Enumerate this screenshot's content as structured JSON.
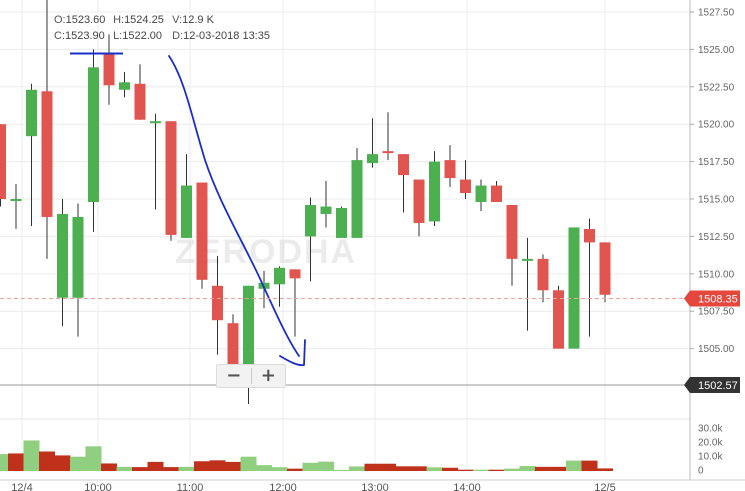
{
  "ohlc_info": {
    "open_label": "O:",
    "open": "1523.60",
    "high_label": "H:",
    "high": "1524.25",
    "volume_label": "V:",
    "volume": "12.9 K",
    "close_label": "C:",
    "close": "1523.90",
    "low_label": "L:",
    "low": "1522.00",
    "date_label": "D:",
    "date": "12-03-2018 13:35"
  },
  "watermark": "ZERODHA",
  "price_tags": {
    "last": "1508.35",
    "crosshair": "1502.57"
  },
  "zoom": {
    "minus": "−",
    "plus": "+"
  },
  "colors": {
    "up": "#4caf50",
    "down": "#e05550",
    "vol_up": "#8fcf7f",
    "vol_down": "#c0311b",
    "last_tag": "#e5473d",
    "cross_tag": "#333333",
    "drawing": "#1a2ec8"
  },
  "chart_data": {
    "type": "candlestick",
    "price_axis": {
      "ylim": [
        1502.57,
        1528.3
      ],
      "ticks": [
        "1527.50",
        "1525.00",
        "1522.50",
        "1520.00",
        "1517.50",
        "1515.00",
        "1512.50",
        "1510.00",
        "1507.50",
        "1505.00"
      ]
    },
    "volume_axis": {
      "ylim": [
        0,
        40000
      ],
      "ticks": [
        "30.0k",
        "20.0k",
        "10.0k",
        "0"
      ]
    },
    "time_ticks": [
      "12/4",
      "10:00",
      "11:00",
      "12:00",
      "13:00",
      "14:00",
      "12/5"
    ],
    "candles": [
      {
        "o": 1520.0,
        "h": 1520.0,
        "l": 1514.5,
        "c": 1515.0
      },
      {
        "o": 1515.0,
        "h": 1516.0,
        "l": 1513.0,
        "c": 1515.0
      },
      {
        "o": 1519.2,
        "h": 1522.7,
        "l": 1513.2,
        "c": 1522.3
      },
      {
        "o": 1522.2,
        "h": 1529.0,
        "l": 1511.0,
        "c": 1513.8
      },
      {
        "o": 1508.4,
        "h": 1515.0,
        "l": 1506.5,
        "c": 1514.0
      },
      {
        "o": 1508.4,
        "h": 1514.7,
        "l": 1505.8,
        "c": 1513.8
      },
      {
        "o": 1514.8,
        "h": 1525.0,
        "l": 1512.8,
        "c": 1523.8
      },
      {
        "o": 1524.7,
        "h": 1526.0,
        "l": 1521.3,
        "c": 1522.6
      },
      {
        "o": 1522.3,
        "h": 1523.5,
        "l": 1521.8,
        "c": 1522.8
      },
      {
        "o": 1522.7,
        "h": 1524.0,
        "l": 1520.3,
        "c": 1520.3
      },
      {
        "o": 1520.2,
        "h": 1520.7,
        "l": 1514.3,
        "c": 1520.2
      },
      {
        "o": 1520.2,
        "h": 1520.2,
        "l": 1512.2,
        "c": 1512.6
      },
      {
        "o": 1512.4,
        "h": 1518.0,
        "l": 1512.4,
        "c": 1515.9
      },
      {
        "o": 1516.1,
        "h": 1516.1,
        "l": 1509.0,
        "c": 1509.6
      },
      {
        "o": 1509.2,
        "h": 1511.2,
        "l": 1504.6,
        "c": 1506.9
      },
      {
        "o": 1506.7,
        "h": 1507.3,
        "l": 1503.7,
        "c": 1503.7
      },
      {
        "o": 1503.7,
        "h": 1509.2,
        "l": 1501.3,
        "c": 1509.2
      },
      {
        "o": 1509.0,
        "h": 1510.2,
        "l": 1507.7,
        "c": 1509.4
      },
      {
        "o": 1509.3,
        "h": 1510.5,
        "l": 1507.8,
        "c": 1510.4
      },
      {
        "o": 1510.3,
        "h": 1510.3,
        "l": 1505.8,
        "c": 1509.7
      },
      {
        "o": 1512.5,
        "h": 1515.1,
        "l": 1509.5,
        "c": 1514.6
      },
      {
        "o": 1514.0,
        "h": 1516.2,
        "l": 1513.1,
        "c": 1514.5
      },
      {
        "o": 1512.4,
        "h": 1514.5,
        "l": 1512.4,
        "c": 1514.4
      },
      {
        "o": 1512.4,
        "h": 1518.4,
        "l": 1512.4,
        "c": 1517.6
      },
      {
        "o": 1517.4,
        "h": 1520.4,
        "l": 1517.1,
        "c": 1518.0
      },
      {
        "o": 1518.2,
        "h": 1520.8,
        "l": 1517.6,
        "c": 1518.1
      },
      {
        "o": 1518.0,
        "h": 1518.0,
        "l": 1514.1,
        "c": 1516.6
      },
      {
        "o": 1516.3,
        "h": 1516.3,
        "l": 1512.5,
        "c": 1513.4
      },
      {
        "o": 1513.5,
        "h": 1518.2,
        "l": 1513.2,
        "c": 1517.5
      },
      {
        "o": 1517.6,
        "h": 1518.6,
        "l": 1515.8,
        "c": 1516.4
      },
      {
        "o": 1516.3,
        "h": 1517.6,
        "l": 1515.0,
        "c": 1515.4
      },
      {
        "o": 1514.8,
        "h": 1516.3,
        "l": 1514.2,
        "c": 1515.9
      },
      {
        "o": 1515.9,
        "h": 1516.2,
        "l": 1514.8,
        "c": 1514.8
      },
      {
        "o": 1514.6,
        "h": 1514.6,
        "l": 1509.2,
        "c": 1511.0
      },
      {
        "o": 1511.0,
        "h": 1512.4,
        "l": 1506.2,
        "c": 1511.0
      },
      {
        "o": 1511.0,
        "h": 1511.3,
        "l": 1508.1,
        "c": 1508.9
      },
      {
        "o": 1508.9,
        "h": 1509.2,
        "l": 1505.0,
        "c": 1505.0
      },
      {
        "o": 1505.0,
        "h": 1513.1,
        "l": 1505.0,
        "c": 1513.1
      },
      {
        "o": 1513.0,
        "h": 1513.7,
        "l": 1505.8,
        "c": 1512.1
      },
      {
        "o": 1512.1,
        "h": 1512.1,
        "l": 1508.1,
        "c": 1508.6
      }
    ],
    "volumes": [
      {
        "v": 13000,
        "up": true
      },
      {
        "v": 13500,
        "up": false
      },
      {
        "v": 23500,
        "up": true
      },
      {
        "v": 15000,
        "up": false
      },
      {
        "v": 12000,
        "up": false
      },
      {
        "v": 11000,
        "up": true
      },
      {
        "v": 19000,
        "up": true
      },
      {
        "v": 5800,
        "up": false
      },
      {
        "v": 3200,
        "up": true
      },
      {
        "v": 3000,
        "up": false
      },
      {
        "v": 7000,
        "up": false
      },
      {
        "v": 3000,
        "up": false
      },
      {
        "v": 3200,
        "up": true
      },
      {
        "v": 7500,
        "up": false
      },
      {
        "v": 8200,
        "up": false
      },
      {
        "v": 7000,
        "up": false
      },
      {
        "v": 11000,
        "up": true
      },
      {
        "v": 4500,
        "up": true
      },
      {
        "v": 2900,
        "up": true
      },
      {
        "v": 1800,
        "up": false
      },
      {
        "v": 6300,
        "up": true
      },
      {
        "v": 7200,
        "up": true
      },
      {
        "v": 800,
        "up": true
      },
      {
        "v": 3500,
        "up": true
      },
      {
        "v": 5600,
        "up": false
      },
      {
        "v": 5600,
        "up": false
      },
      {
        "v": 3600,
        "up": false
      },
      {
        "v": 3600,
        "up": false
      },
      {
        "v": 2800,
        "up": true
      },
      {
        "v": 2500,
        "up": false
      },
      {
        "v": 1000,
        "up": false
      },
      {
        "v": 1000,
        "up": true
      },
      {
        "v": 1000,
        "up": false
      },
      {
        "v": 1800,
        "up": true
      },
      {
        "v": 3800,
        "up": true
      },
      {
        "v": 3200,
        "up": false
      },
      {
        "v": 3200,
        "up": false
      },
      {
        "v": 8000,
        "up": true
      },
      {
        "v": 8000,
        "up": false
      },
      {
        "v": 2000,
        "up": false
      }
    ]
  }
}
